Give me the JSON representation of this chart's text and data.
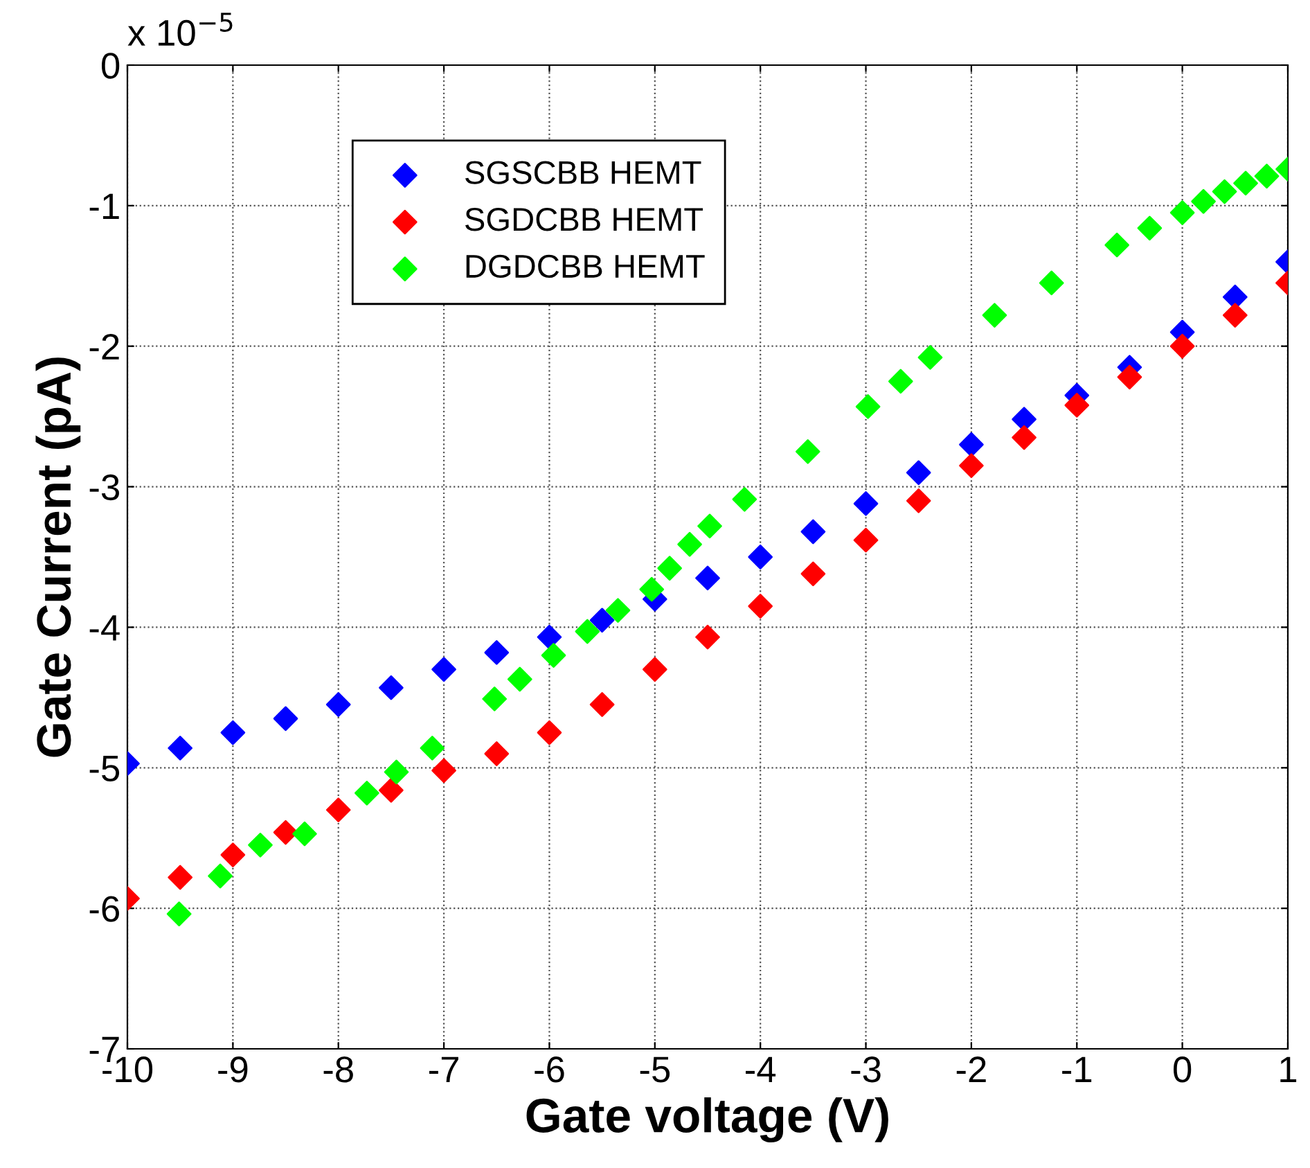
{
  "chart_data": {
    "type": "scatter",
    "xlabel": "Gate voltage (V)",
    "ylabel": "Gate Current (pA)",
    "annotations": [
      "x 10$^{−5}$"
    ],
    "xlim": [
      -10,
      1
    ],
    "xticks": [
      -10,
      -9,
      -8,
      -7,
      -6,
      -5,
      -4,
      -3,
      -2,
      -1,
      0,
      1
    ],
    "ylim": [
      -7,
      0
    ],
    "yticks": [
      -7,
      -6,
      -5,
      -4,
      -3,
      -2,
      -1,
      0
    ],
    "grid": true,
    "legend": "top left",
    "marker": "diamond",
    "series": [
      {
        "name": "SGSCBB HEMT",
        "color": "#0000ff",
        "x": [
          -10,
          -9.5,
          -9,
          -8.5,
          -8,
          -7.5,
          -7,
          -6.5,
          -6,
          -5.5,
          -5,
          -4.5,
          -4,
          -3.5,
          -3,
          -2.5,
          -2,
          -1.5,
          -1,
          -0.5,
          0,
          0.5,
          1
        ],
        "values": [
          -4.97,
          -4.86,
          -4.75,
          -4.65,
          -4.55,
          -4.43,
          -4.3,
          -4.18,
          -4.07,
          -3.95,
          -3.8,
          -3.65,
          -3.5,
          -3.32,
          -3.12,
          -2.9,
          -2.7,
          -2.52,
          -2.35,
          -2.15,
          -1.9,
          -1.65,
          -1.4
        ]
      },
      {
        "name": "SGDCBB HEMT",
        "color": "#ff0000",
        "x": [
          -10,
          -9.5,
          -9,
          -8.5,
          -8,
          -7.5,
          -7,
          -6.5,
          -6,
          -5.5,
          -5,
          -4.5,
          -4,
          -3.5,
          -3,
          -2.5,
          -2,
          -1.5,
          -1,
          -0.5,
          0,
          0.5,
          1
        ],
        "values": [
          -5.93,
          -5.78,
          -5.62,
          -5.46,
          -5.3,
          -5.16,
          -5.02,
          -4.9,
          -4.75,
          -4.55,
          -4.3,
          -4.07,
          -3.85,
          -3.62,
          -3.38,
          -3.1,
          -2.85,
          -2.65,
          -2.42,
          -2.22,
          -2.0,
          -1.78,
          -1.55
        ]
      },
      {
        "name": "DGDCBB HEMT",
        "color": "#00ff00",
        "x": [
          -9.51,
          -9.12,
          -8.74,
          -8.32,
          -7.73,
          -7.45,
          -7.11,
          -6.52,
          -6.28,
          -5.96,
          -5.64,
          -5.35,
          -5.03,
          -4.86,
          -4.67,
          -4.48,
          -4.15,
          -3.55,
          -2.98,
          -2.67,
          -2.39,
          -1.78,
          -1.24,
          -0.62,
          -0.31,
          0.0,
          0.2,
          0.4,
          0.6,
          0.8,
          1.0
        ],
        "values": [
          -6.04,
          -5.77,
          -5.55,
          -5.47,
          -5.18,
          -5.03,
          -4.86,
          -4.51,
          -4.37,
          -4.2,
          -4.03,
          -3.88,
          -3.73,
          -3.58,
          -3.41,
          -3.28,
          -3.09,
          -2.75,
          -2.43,
          -2.25,
          -2.08,
          -1.78,
          -1.55,
          -1.28,
          -1.16,
          -1.05,
          -0.97,
          -0.9,
          -0.84,
          -0.79,
          -0.74
        ]
      }
    ]
  }
}
